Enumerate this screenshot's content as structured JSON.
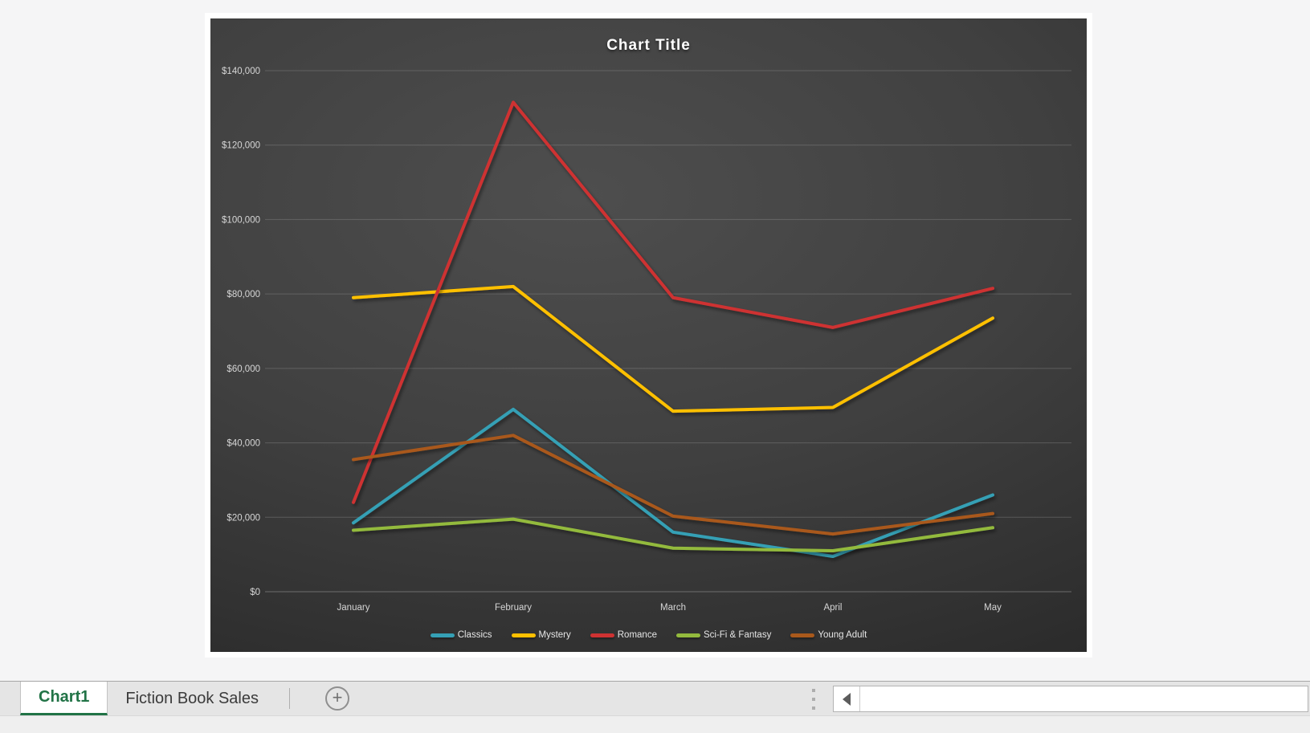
{
  "window": {
    "app_background": "#f5f5f6",
    "page_background": "#ffffff"
  },
  "chart": {
    "background_center": "#4e4e4e",
    "background_edge": "#262626",
    "gridline_color": "#a8a8a8",
    "axis_label_color": "#d6d6d6",
    "title_color": "#ffffff"
  },
  "chart_data": {
    "type": "line",
    "title": "Chart Title",
    "categories": [
      "January",
      "February",
      "March",
      "April",
      "May"
    ],
    "series": [
      {
        "name": "Classics",
        "color": "#35A0B5",
        "values": [
          18500,
          49000,
          16000,
          9500,
          26000
        ]
      },
      {
        "name": "Mystery",
        "color": "#FFC000",
        "values": [
          79000,
          82000,
          48500,
          49500,
          73500
        ]
      },
      {
        "name": "Romance",
        "color": "#CE3232",
        "values": [
          24000,
          131500,
          79000,
          71000,
          81500
        ]
      },
      {
        "name": "Sci-Fi & Fantasy",
        "color": "#93BA3D",
        "values": [
          16500,
          19500,
          11700,
          11000,
          17200
        ]
      },
      {
        "name": "Young Adult",
        "color": "#A9591B",
        "values": [
          35500,
          42000,
          20300,
          15500,
          21000
        ]
      }
    ],
    "ylim": [
      0,
      140000
    ],
    "y_ticks": [
      0,
      20000,
      40000,
      60000,
      80000,
      100000,
      120000,
      140000
    ],
    "y_tick_labels": [
      "$0",
      "$20,000",
      "$40,000",
      "$60,000",
      "$80,000",
      "$100,000",
      "$120,000",
      "$140,000"
    ],
    "xlabel": "",
    "ylabel": "",
    "grid": true,
    "legend_position": "bottom"
  },
  "sheet_tabs": {
    "tabs": [
      {
        "label": "Chart1",
        "active": true
      },
      {
        "label": "Fiction Book Sales",
        "active": false
      }
    ],
    "active_text_color": "#217346"
  },
  "icons": {
    "add_sheet": "+",
    "scroll_left": "◀"
  }
}
